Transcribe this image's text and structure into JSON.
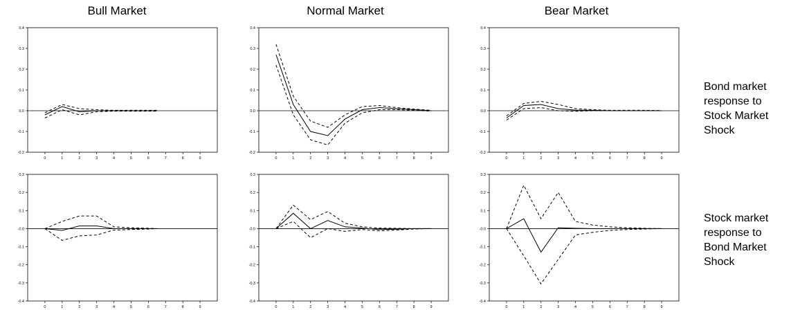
{
  "column_titles": [
    "Bull Market",
    "Normal Market",
    "Bear Market"
  ],
  "row_labels": [
    [
      "Bond market",
      "response to",
      "Stock Market",
      "Shock"
    ],
    [
      "Stock market",
      "response to",
      "Bond Market",
      "Shock"
    ]
  ],
  "chart_data": [
    {
      "type": "line",
      "title": "Bull Market",
      "row": 0,
      "col": 0,
      "xlabel": "",
      "ylabel": "",
      "xlim": [
        -1,
        10
      ],
      "ylim": [
        -0.2,
        0.4
      ],
      "xticks": [
        0,
        1,
        2,
        3,
        4,
        5,
        6,
        7,
        8,
        9
      ],
      "yticks": [
        -0.2,
        -0.1,
        0.0,
        0.1,
        0.2,
        0.3,
        0.4
      ],
      "ytick_labels": [
        "-0.2",
        "-0.1",
        "0.0",
        "0.1",
        "0.2",
        "0.3",
        "0.4"
      ],
      "series": [
        {
          "style": "solid",
          "x": [
            0,
            1,
            2,
            3,
            4,
            5,
            6,
            6.5
          ],
          "values": [
            -0.02,
            0.02,
            -0.005,
            0.0,
            0.0,
            0.0,
            0.0,
            0.0
          ]
        },
        {
          "style": "dashed",
          "x": [
            0,
            1,
            2,
            3,
            4,
            5,
            6,
            6.5
          ],
          "values": [
            -0.01,
            0.03,
            0.01,
            0.005,
            0.002,
            0.002,
            0.002,
            0.002
          ]
        },
        {
          "style": "dashed",
          "x": [
            0,
            1,
            2,
            3,
            4,
            5,
            6,
            6.5
          ],
          "values": [
            -0.035,
            0.005,
            -0.02,
            -0.005,
            -0.002,
            -0.002,
            -0.002,
            -0.002
          ]
        }
      ]
    },
    {
      "type": "line",
      "title": "Normal Market",
      "row": 0,
      "col": 1,
      "xlabel": "",
      "ylabel": "",
      "xlim": [
        -1,
        10
      ],
      "ylim": [
        -0.2,
        0.4
      ],
      "xticks": [
        0,
        1,
        2,
        3,
        4,
        5,
        6,
        7,
        8,
        9
      ],
      "yticks": [
        -0.2,
        -0.1,
        0.0,
        0.1,
        0.2,
        0.3,
        0.4
      ],
      "ytick_labels": [
        "-0.2",
        "-0.1",
        "0.0",
        "0.1",
        "0.2",
        "0.3",
        "0.4"
      ],
      "series": [
        {
          "style": "solid",
          "x": [
            0,
            1,
            2,
            3,
            4,
            5,
            6,
            7,
            8,
            9
          ],
          "values": [
            0.27,
            0.03,
            -0.1,
            -0.12,
            -0.04,
            0.005,
            0.015,
            0.01,
            0.005,
            0.0
          ]
        },
        {
          "style": "dashed",
          "x": [
            0,
            1,
            2,
            3,
            4,
            5,
            6,
            7,
            8,
            9
          ],
          "values": [
            0.32,
            0.07,
            -0.05,
            -0.08,
            -0.02,
            0.02,
            0.025,
            0.015,
            0.008,
            0.002
          ]
        },
        {
          "style": "dashed",
          "x": [
            0,
            1,
            2,
            3,
            4,
            5,
            6,
            7,
            8,
            9
          ],
          "values": [
            0.22,
            -0.02,
            -0.14,
            -0.165,
            -0.06,
            -0.01,
            0.005,
            0.005,
            0.002,
            -0.002
          ]
        }
      ]
    },
    {
      "type": "line",
      "title": "Bear Market",
      "row": 0,
      "col": 2,
      "xlabel": "",
      "ylabel": "",
      "xlim": [
        -1,
        10
      ],
      "ylim": [
        -0.2,
        0.4
      ],
      "xticks": [
        0,
        1,
        2,
        3,
        4,
        5,
        6,
        7,
        8,
        9
      ],
      "yticks": [
        -0.2,
        -0.1,
        0.0,
        0.1,
        0.2,
        0.3,
        0.4
      ],
      "ytick_labels": [
        "-0.2",
        "-0.1",
        "0.0",
        "0.1",
        "0.2",
        "0.3",
        "0.4"
      ],
      "series": [
        {
          "style": "solid",
          "x": [
            0,
            1,
            2,
            3,
            4,
            5,
            6,
            7,
            8,
            9
          ],
          "values": [
            -0.035,
            0.025,
            0.03,
            0.01,
            0.003,
            0.002,
            0.0,
            0.0,
            0.0,
            0.0
          ]
        },
        {
          "style": "dashed",
          "x": [
            0,
            1,
            2,
            3,
            4,
            5,
            6,
            7,
            8,
            9
          ],
          "values": [
            -0.025,
            0.035,
            0.045,
            0.03,
            0.01,
            0.005,
            0.002,
            0.002,
            0.002,
            0.001
          ]
        },
        {
          "style": "dashed",
          "x": [
            0,
            1,
            2,
            3,
            4,
            5,
            6,
            7,
            8,
            9
          ],
          "values": [
            -0.045,
            0.01,
            0.015,
            0.0,
            -0.003,
            0.0,
            0.0,
            0.0,
            0.0,
            0.0
          ]
        }
      ]
    },
    {
      "type": "line",
      "title": "",
      "row": 1,
      "col": 0,
      "xlabel": "",
      "ylabel": "",
      "xlim": [
        -1,
        10
      ],
      "ylim": [
        -0.4,
        0.3
      ],
      "xticks": [
        0,
        1,
        2,
        3,
        4,
        5,
        6,
        7,
        8,
        9
      ],
      "yticks": [
        -0.4,
        -0.3,
        -0.2,
        -0.1,
        0.0,
        0.1,
        0.2,
        0.3
      ],
      "ytick_labels": [
        "-0.4",
        "-0.3",
        "-0.2",
        "-0.1",
        "-0.0",
        "0.1",
        "0.2",
        "0.3"
      ],
      "series": [
        {
          "style": "solid",
          "x": [
            0,
            1,
            2,
            3,
            4,
            5,
            6,
            6.5
          ],
          "values": [
            0.0,
            -0.01,
            0.015,
            0.015,
            0.0,
            0.0,
            0.0,
            0.0
          ]
        },
        {
          "style": "dashed",
          "x": [
            0,
            1,
            2,
            3,
            4,
            5,
            6,
            6.5
          ],
          "values": [
            0.0,
            0.04,
            0.07,
            0.07,
            0.01,
            0.005,
            0.002,
            0.0
          ]
        },
        {
          "style": "dashed",
          "x": [
            0,
            1,
            2,
            3,
            4,
            5,
            6,
            6.5
          ],
          "values": [
            0.0,
            -0.065,
            -0.04,
            -0.035,
            -0.008,
            -0.005,
            -0.002,
            0.0
          ]
        }
      ]
    },
    {
      "type": "line",
      "title": "",
      "row": 1,
      "col": 1,
      "xlabel": "",
      "ylabel": "",
      "xlim": [
        -1,
        10
      ],
      "ylim": [
        -0.4,
        0.3
      ],
      "xticks": [
        0,
        1,
        2,
        3,
        4,
        5,
        6,
        7,
        8,
        9
      ],
      "yticks": [
        -0.4,
        -0.3,
        -0.2,
        -0.1,
        0.0,
        0.1,
        0.2,
        0.3
      ],
      "ytick_labels": [
        "-0.4",
        "-0.3",
        "-0.2",
        "-0.1",
        "-0.0",
        "0.1",
        "0.2",
        "0.3"
      ],
      "series": [
        {
          "style": "solid",
          "x": [
            0,
            1,
            2,
            3,
            4,
            5,
            6,
            7,
            8,
            9
          ],
          "values": [
            0.0,
            0.085,
            0.0,
            0.045,
            0.01,
            0.003,
            -0.005,
            -0.003,
            0.0,
            0.0
          ]
        },
        {
          "style": "dashed",
          "x": [
            0,
            1,
            2,
            3,
            4,
            5,
            6,
            7,
            8,
            9
          ],
          "values": [
            0.0,
            0.13,
            0.05,
            0.095,
            0.03,
            0.01,
            0.003,
            0.002,
            0.0,
            0.0
          ]
        },
        {
          "style": "dashed",
          "x": [
            0,
            1,
            2,
            3,
            4,
            5,
            6,
            7,
            8,
            9
          ],
          "values": [
            0.0,
            0.04,
            -0.05,
            0.0,
            -0.015,
            -0.005,
            -0.012,
            -0.008,
            -0.002,
            0.0
          ]
        }
      ]
    },
    {
      "type": "line",
      "title": "",
      "row": 1,
      "col": 2,
      "xlabel": "",
      "ylabel": "",
      "xlim": [
        -1,
        10
      ],
      "ylim": [
        -0.4,
        0.3
      ],
      "xticks": [
        0,
        1,
        2,
        3,
        4,
        5,
        6,
        7,
        8,
        9
      ],
      "yticks": [
        -0.4,
        -0.3,
        -0.2,
        -0.1,
        0.0,
        0.1,
        0.2,
        0.3
      ],
      "ytick_labels": [
        "-0.4",
        "-0.3",
        "-0.2",
        "-0.1",
        "-0.0",
        "0.1",
        "0.2",
        "0.3"
      ],
      "series": [
        {
          "style": "solid",
          "x": [
            0,
            1,
            2,
            3,
            4,
            5,
            6,
            7,
            8,
            9
          ],
          "values": [
            0.0,
            0.055,
            -0.13,
            0.005,
            0.002,
            0.0,
            0.0,
            0.0,
            0.0,
            0.0
          ]
        },
        {
          "style": "dashed",
          "x": [
            0,
            1,
            2,
            3,
            4,
            5,
            6,
            7,
            8,
            9
          ],
          "values": [
            0.0,
            0.24,
            0.055,
            0.2,
            0.04,
            0.02,
            0.01,
            0.005,
            0.002,
            0.0
          ]
        },
        {
          "style": "dashed",
          "x": [
            0,
            1,
            2,
            3,
            4,
            5,
            6,
            7,
            8,
            9
          ],
          "values": [
            0.0,
            -0.15,
            -0.305,
            -0.17,
            -0.035,
            -0.02,
            -0.01,
            -0.005,
            -0.002,
            0.0
          ]
        }
      ]
    }
  ]
}
